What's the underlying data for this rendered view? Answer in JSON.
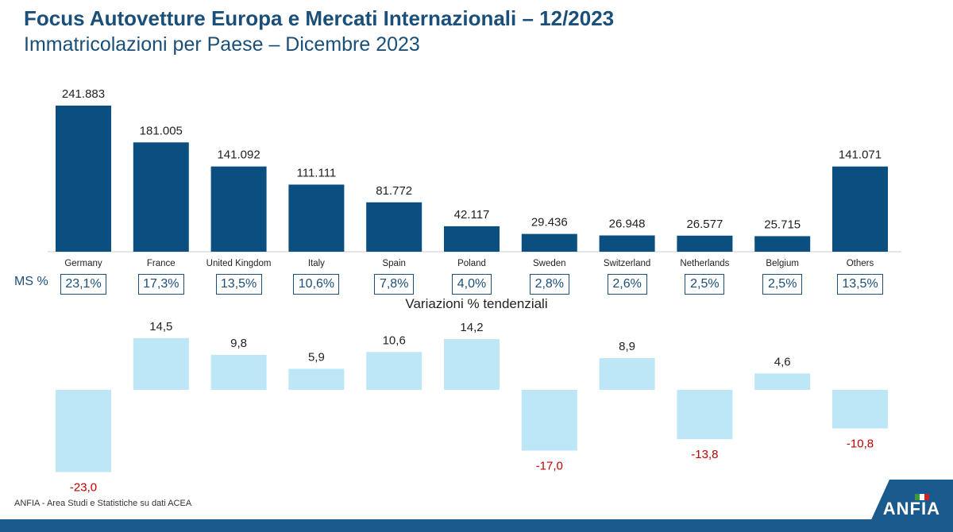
{
  "title": "Focus Autovetture Europa e Mercati Internazionali – 12/2023",
  "subtitle": "Immatricolazioni per Paese – Dicembre 2023",
  "ms_label": "MS %",
  "var_title": "Variazioni % tendenziali",
  "source": "ANFIA - Area Studi e Statistiche su dati ACEA",
  "logo_text": "ANFIA",
  "colors": {
    "title": "#1a4f7a",
    "bar_dark": "#0b4f80",
    "bar_light": "#bde6f7",
    "neg_label": "#c00000",
    "footer": "#1a5a8c"
  },
  "chart_data": [
    {
      "type": "bar",
      "categories": [
        "Germany",
        "France",
        "United Kingdom",
        "Italy",
        "Spain",
        "Poland",
        "Sweden",
        "Switzerland",
        "Netherlands",
        "Belgium",
        "Others"
      ],
      "values": [
        241883,
        181005,
        141092,
        111111,
        81772,
        42117,
        29436,
        26948,
        26577,
        25715,
        141071
      ],
      "labels": [
        "241.883",
        "181.005",
        "141.092",
        "111.111",
        "81.772",
        "42.117",
        "29.436",
        "26.948",
        "26.577",
        "25.715",
        "141.071"
      ],
      "ylim": [
        0,
        241883
      ]
    },
    {
      "type": "bar",
      "categories": [
        "Germany",
        "France",
        "United Kingdom",
        "Italy",
        "Spain",
        "Poland",
        "Sweden",
        "Switzerland",
        "Netherlands",
        "Belgium",
        "Others"
      ],
      "values": [
        -23.0,
        14.5,
        9.8,
        5.9,
        10.6,
        14.2,
        -17.0,
        8.9,
        -13.8,
        4.6,
        -10.8
      ],
      "labels": [
        "-23,0",
        "14,5",
        "9,8",
        "5,9",
        "10,6",
        "14,2",
        "-17,0",
        "8,9",
        "-13,8",
        "4,6",
        "-10,8"
      ],
      "title": "Variazioni % tendenziali"
    }
  ],
  "market_share": [
    "23,1%",
    "17,3%",
    "13,5%",
    "10,6%",
    "7,8%",
    "4,0%",
    "2,8%",
    "2,6%",
    "2,5%",
    "2,5%",
    "13,5%"
  ]
}
